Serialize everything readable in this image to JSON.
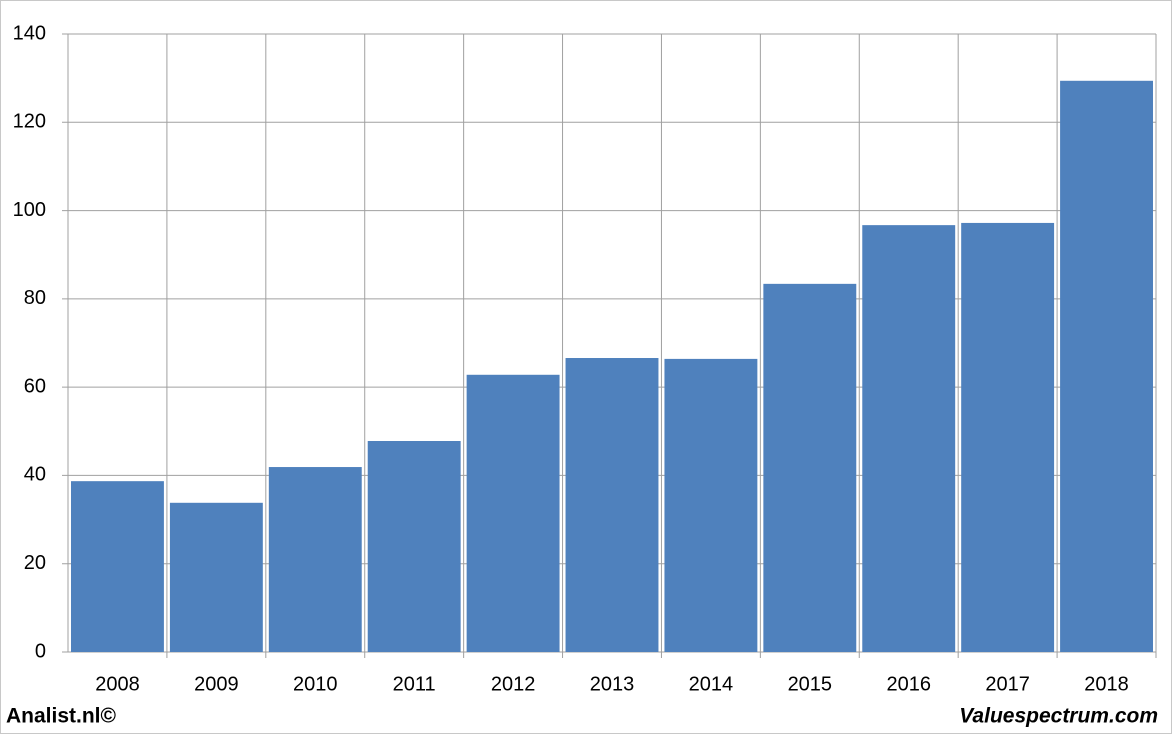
{
  "chart_data": {
    "type": "bar",
    "categories": [
      "2008",
      "2009",
      "2010",
      "2011",
      "2012",
      "2013",
      "2014",
      "2015",
      "2016",
      "2017",
      "2018"
    ],
    "values": [
      38.7,
      33.8,
      41.9,
      47.8,
      62.8,
      66.6,
      66.4,
      83.4,
      96.7,
      97.2,
      129.4
    ],
    "color": "#4f81bd",
    "ylim": [
      0,
      140
    ],
    "yticks": [
      0,
      20,
      40,
      60,
      80,
      100,
      120,
      140
    ],
    "grid": true,
    "source_left": "Analist.nl©",
    "source_right": "Valuespectrum.com"
  }
}
